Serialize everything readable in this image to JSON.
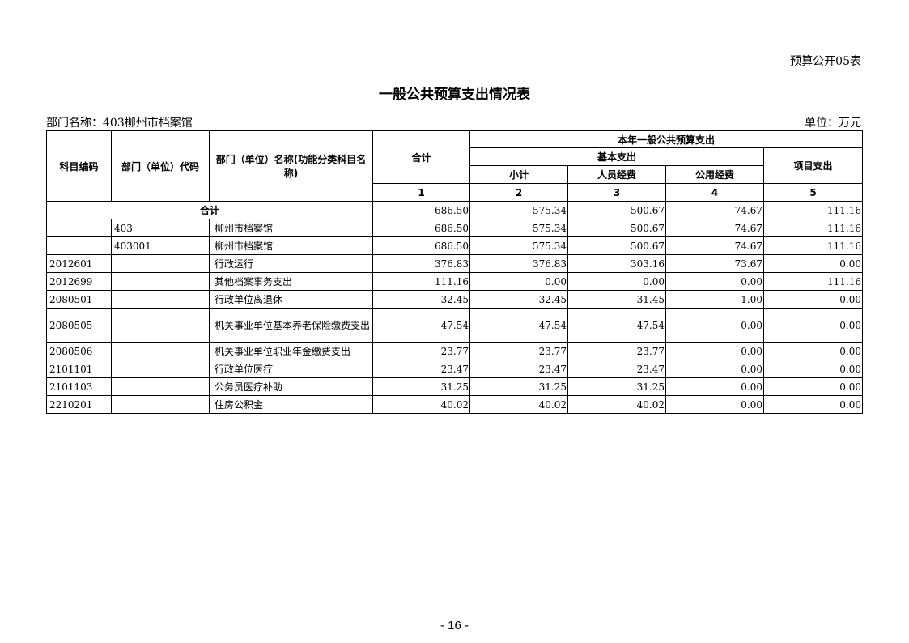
{
  "form_no": "预算公开05表",
  "title": "一般公共预算支出情况表",
  "dept_label": "部门名称：403柳州市档案馆",
  "unit_label": "单位：万元",
  "headers": {
    "code": "科目编码",
    "dept_code": "部门（单位）代码",
    "name": "部门（单位）名称(功能分类科目名称)",
    "total": "合计",
    "group": "本年一般公共预算支出",
    "basic": "基本支出",
    "subtotal": "小计",
    "personnel": "人员经费",
    "public": "公用经费",
    "project": "项目支出",
    "col_nums": [
      "1",
      "2",
      "3",
      "4",
      "5"
    ]
  },
  "total_row": {
    "label": "合计",
    "values": [
      "686.50",
      "575.34",
      "500.67",
      "74.67",
      "111.16"
    ]
  },
  "rows": [
    {
      "code": "",
      "dept_code": "403",
      "name": "柳州市档案馆",
      "values": [
        "686.50",
        "575.34",
        "500.67",
        "74.67",
        "111.16"
      ]
    },
    {
      "code": "",
      "dept_code": "403001",
      "name": "柳州市档案馆",
      "values": [
        "686.50",
        "575.34",
        "500.67",
        "74.67",
        "111.16"
      ]
    },
    {
      "code": "2012601",
      "dept_code": "",
      "name": "行政运行",
      "values": [
        "376.83",
        "376.83",
        "303.16",
        "73.67",
        "0.00"
      ]
    },
    {
      "code": "2012699",
      "dept_code": "",
      "name": "其他档案事务支出",
      "values": [
        "111.16",
        "0.00",
        "0.00",
        "0.00",
        "111.16"
      ]
    },
    {
      "code": "2080501",
      "dept_code": "",
      "name": "行政单位离退休",
      "values": [
        "32.45",
        "32.45",
        "31.45",
        "1.00",
        "0.00"
      ]
    },
    {
      "code": "2080505",
      "dept_code": "",
      "name": "机关事业单位基本养老保险缴费支出",
      "values": [
        "47.54",
        "47.54",
        "47.54",
        "0.00",
        "0.00"
      ]
    },
    {
      "code": "2080506",
      "dept_code": "",
      "name": "机关事业单位职业年金缴费支出",
      "values": [
        "23.77",
        "23.77",
        "23.77",
        "0.00",
        "0.00"
      ]
    },
    {
      "code": "2101101",
      "dept_code": "",
      "name": "行政单位医疗",
      "values": [
        "23.47",
        "23.47",
        "23.47",
        "0.00",
        "0.00"
      ]
    },
    {
      "code": "2101103",
      "dept_code": "",
      "name": "公务员医疗补助",
      "values": [
        "31.25",
        "31.25",
        "31.25",
        "0.00",
        "0.00"
      ]
    },
    {
      "code": "2210201",
      "dept_code": "",
      "name": "住房公积金",
      "values": [
        "40.02",
        "40.02",
        "40.02",
        "0.00",
        "0.00"
      ]
    }
  ],
  "footer": "- 16 -"
}
